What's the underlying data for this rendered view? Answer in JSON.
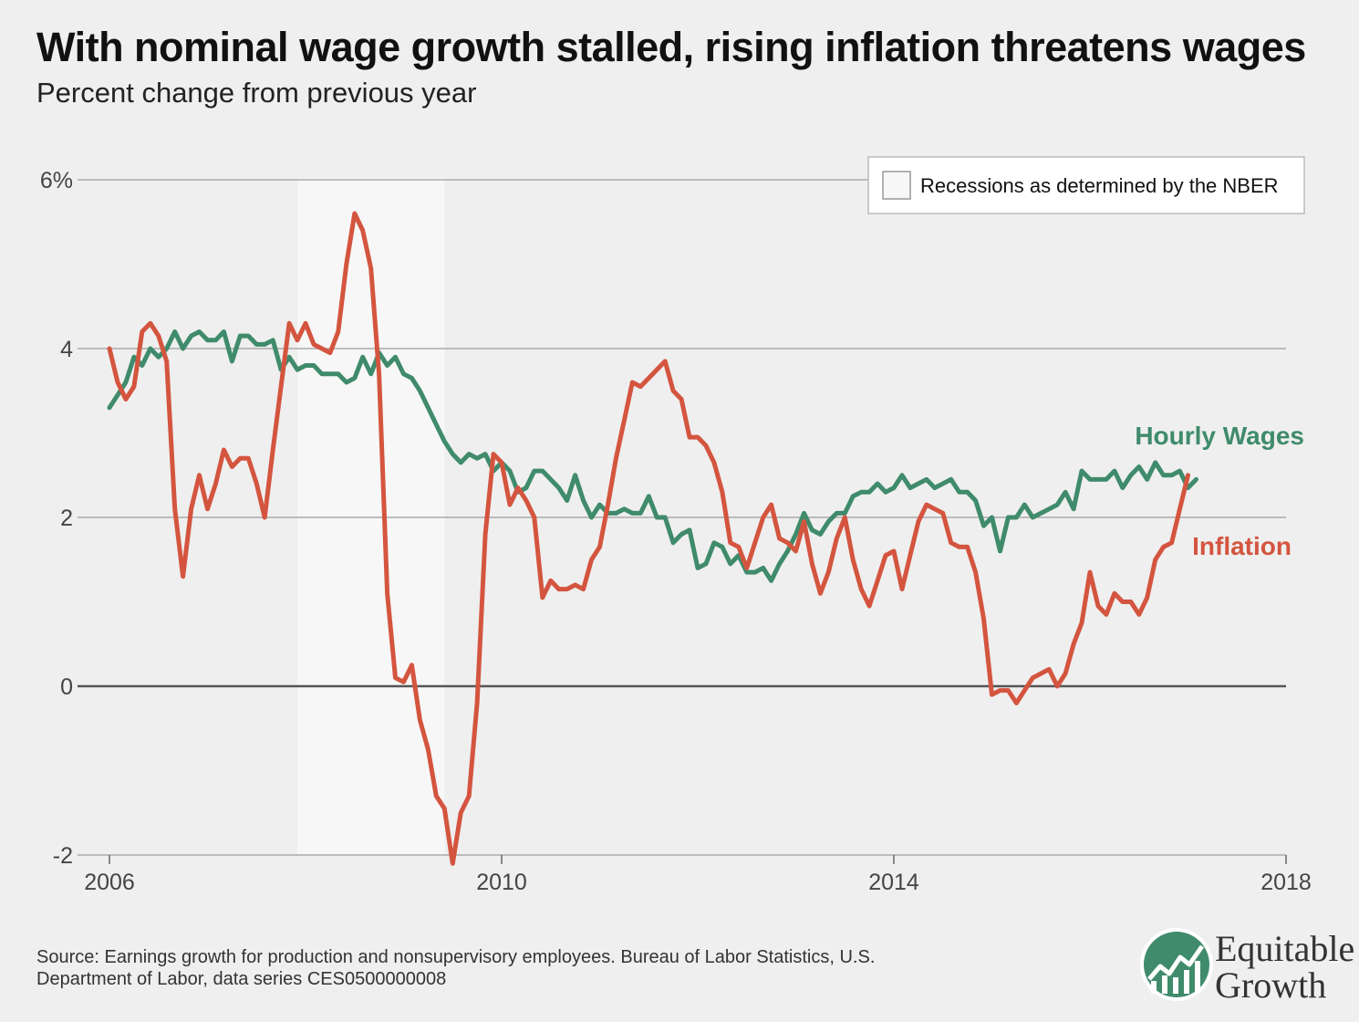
{
  "header": {
    "title": "With nominal wage growth stalled, rising inflation threatens wages",
    "subtitle": "Percent change from previous year"
  },
  "footer": {
    "source_line1": "Source: Earnings growth for production and nonsupervisory employees. Bureau of Labor Statistics, U.S.",
    "source_line2": "Department of Labor, data series CES0500000008"
  },
  "logo": {
    "line1": "Equitable",
    "line2": "Growth"
  },
  "colors": {
    "wages": "#3f8b6c",
    "inflation": "#d4553f",
    "recession": "#f7f7f7",
    "grid": "#aaaaaa",
    "zero": "#555555",
    "background": "#efefef"
  },
  "chart_data": {
    "type": "line",
    "title": "With nominal wage growth stalled, rising inflation threatens wages",
    "subtitle": "Percent change from previous year",
    "xlim": [
      2006,
      2018
    ],
    "ylim": [
      -2,
      6
    ],
    "x_ticks": [
      2006,
      2010,
      2014,
      2018
    ],
    "x_tick_labels": [
      "2006",
      "2010",
      "2014",
      "2018"
    ],
    "y_ticks": [
      -2,
      0,
      2,
      4,
      6
    ],
    "y_tick_labels": [
      "-2",
      "0",
      "2",
      "4",
      "6%"
    ],
    "grid": true,
    "legend": {
      "label": "Recessions as determined by the NBER",
      "position": "top-right"
    },
    "recessions": [
      {
        "start": 2007.917,
        "end": 2009.417
      }
    ],
    "series": [
      {
        "name": "Hourly Wages",
        "color": "#3f8b6c",
        "start": 2006.0,
        "step_months": 1,
        "values": [
          3.3,
          3.45,
          3.6,
          3.9,
          3.8,
          4.0,
          3.9,
          4.0,
          4.2,
          4.0,
          4.15,
          4.2,
          4.1,
          4.1,
          4.2,
          3.85,
          4.15,
          4.15,
          4.05,
          4.05,
          4.1,
          3.75,
          3.9,
          3.75,
          3.8,
          3.8,
          3.7,
          3.7,
          3.7,
          3.6,
          3.65,
          3.9,
          3.7,
          3.95,
          3.8,
          3.9,
          3.7,
          3.65,
          3.5,
          3.3,
          3.1,
          2.9,
          2.75,
          2.65,
          2.75,
          2.7,
          2.75,
          2.55,
          2.65,
          2.55,
          2.3,
          2.35,
          2.55,
          2.55,
          2.45,
          2.35,
          2.2,
          2.5,
          2.2,
          2.0,
          2.15,
          2.05,
          2.05,
          2.1,
          2.05,
          2.05,
          2.25,
          2.0,
          2.0,
          1.7,
          1.8,
          1.85,
          1.4,
          1.45,
          1.7,
          1.65,
          1.45,
          1.55,
          1.35,
          1.35,
          1.4,
          1.25,
          1.45,
          1.6,
          1.8,
          2.05,
          1.85,
          1.8,
          1.95,
          2.05,
          2.05,
          2.25,
          2.3,
          2.3,
          2.4,
          2.3,
          2.35,
          2.5,
          2.35,
          2.4,
          2.45,
          2.35,
          2.4,
          2.45,
          2.3,
          2.3,
          2.2,
          1.9,
          2.0,
          1.6,
          2.0,
          2.0,
          2.15,
          2.0,
          2.05,
          2.1,
          2.15,
          2.3,
          2.1,
          2.55,
          2.45,
          2.45,
          2.45,
          2.55,
          2.35,
          2.5,
          2.6,
          2.45,
          2.65,
          2.5,
          2.5,
          2.55,
          2.35,
          2.45
        ]
      },
      {
        "name": "Inflation",
        "color": "#d4553f",
        "start": 2006.0,
        "step_months": 1,
        "values": [
          4.0,
          3.6,
          3.4,
          3.55,
          4.2,
          4.3,
          4.15,
          3.85,
          2.1,
          1.3,
          2.1,
          2.5,
          2.1,
          2.4,
          2.8,
          2.6,
          2.7,
          2.7,
          2.4,
          2.0,
          2.8,
          3.55,
          4.3,
          4.1,
          4.3,
          4.05,
          4.0,
          3.95,
          4.2,
          5.0,
          5.6,
          5.4,
          4.95,
          3.7,
          1.1,
          0.1,
          0.05,
          0.25,
          -0.4,
          -0.75,
          -1.3,
          -1.45,
          -2.1,
          -1.5,
          -1.3,
          -0.2,
          1.8,
          2.75,
          2.65,
          2.15,
          2.35,
          2.2,
          2.0,
          1.05,
          1.25,
          1.15,
          1.15,
          1.2,
          1.15,
          1.5,
          1.65,
          2.15,
          2.7,
          3.15,
          3.6,
          3.55,
          3.65,
          3.75,
          3.85,
          3.5,
          3.4,
          2.95,
          2.95,
          2.85,
          2.65,
          2.3,
          1.7,
          1.65,
          1.4,
          1.7,
          2.0,
          2.15,
          1.75,
          1.7,
          1.6,
          1.95,
          1.45,
          1.1,
          1.35,
          1.75,
          2.0,
          1.5,
          1.15,
          0.95,
          1.25,
          1.55,
          1.6,
          1.15,
          1.55,
          1.95,
          2.15,
          2.1,
          2.05,
          1.7,
          1.65,
          1.65,
          1.35,
          0.8,
          -0.1,
          -0.05,
          -0.05,
          -0.2,
          -0.05,
          0.1,
          0.15,
          0.2,
          0.0,
          0.15,
          0.5,
          0.75,
          1.35,
          0.95,
          0.85,
          1.1,
          1.0,
          1.0,
          0.85,
          1.05,
          1.5,
          1.65,
          1.7,
          2.1,
          2.5
        ]
      }
    ]
  }
}
